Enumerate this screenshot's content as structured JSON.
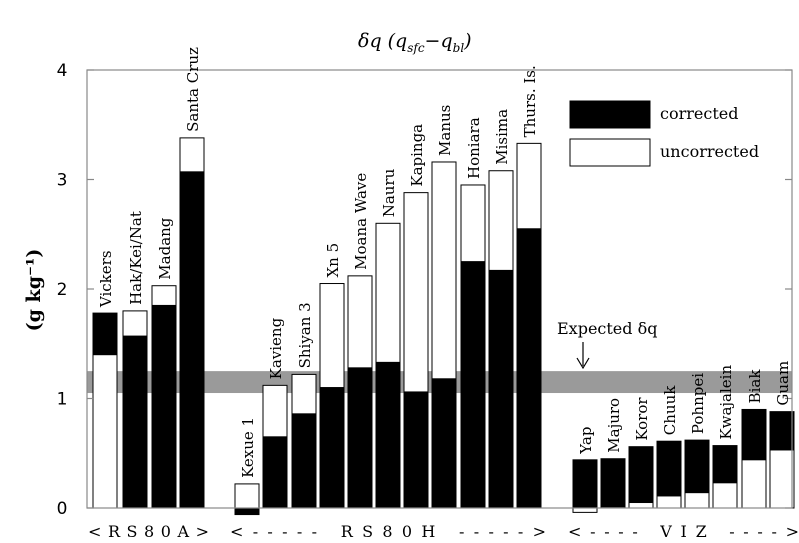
{
  "chart_data": {
    "type": "bar",
    "title": "δq (q",
    "title_sub1": "sfc",
    "title_mid": "−q",
    "title_sub2": "bl",
    "title_end": ")",
    "ylabel": "(g kg⁻¹)",
    "ylim": [
      0,
      4
    ],
    "yticks": [
      "0",
      "1",
      "2",
      "3",
      "4"
    ],
    "expected_band": [
      1.05,
      1.25
    ],
    "expected_label": "Expected δq",
    "legend": [
      {
        "label": "corrected",
        "color": "#000000"
      },
      {
        "label": "uncorrected",
        "color": "#ffffff"
      }
    ],
    "legend_position": "top-right",
    "groups": [
      {
        "label": "<RS80A>",
        "range": [
          0,
          3
        ]
      },
      {
        "label": "<----- RS80H ----->",
        "range": [
          4,
          14
        ]
      },
      {
        "label": "<---- VIZ ---->",
        "range": [
          15,
          22
        ]
      }
    ],
    "stations": [
      {
        "name": "Vickers",
        "corrected": 1.78,
        "uncorrected": 1.4
      },
      {
        "name": "Hak/Kei/Nat",
        "corrected": 1.57,
        "uncorrected": 1.8
      },
      {
        "name": "Madang",
        "corrected": 1.85,
        "uncorrected": 2.03
      },
      {
        "name": "Santa Cruz",
        "corrected": 3.07,
        "uncorrected": 3.38
      },
      {
        "name": "Kexue 1",
        "corrected": -0.06,
        "uncorrected": 0.22
      },
      {
        "name": "Kavieng",
        "corrected": 0.65,
        "uncorrected": 1.12
      },
      {
        "name": "Shiyan 3",
        "corrected": 0.86,
        "uncorrected": 1.22
      },
      {
        "name": "Xn 5",
        "corrected": 1.1,
        "uncorrected": 2.05
      },
      {
        "name": "Moana Wave",
        "corrected": 1.28,
        "uncorrected": 2.12
      },
      {
        "name": "Nauru",
        "corrected": 1.33,
        "uncorrected": 2.6
      },
      {
        "name": "Kapinga",
        "corrected": 1.06,
        "uncorrected": 2.88
      },
      {
        "name": "Manus",
        "corrected": 1.18,
        "uncorrected": 3.16
      },
      {
        "name": "Honiara",
        "corrected": 2.25,
        "uncorrected": 2.95
      },
      {
        "name": "Misima",
        "corrected": 2.17,
        "uncorrected": 3.08
      },
      {
        "name": "Thurs. Is.",
        "corrected": 2.55,
        "uncorrected": 3.33
      },
      {
        "name": "Yap",
        "corrected": 0.44,
        "uncorrected": -0.04
      },
      {
        "name": "Majuro",
        "corrected": 0.45,
        "uncorrected": 0.01
      },
      {
        "name": "Koror",
        "corrected": 0.56,
        "uncorrected": 0.05
      },
      {
        "name": "Chuuk",
        "corrected": 0.61,
        "uncorrected": 0.11
      },
      {
        "name": "Pohnpei",
        "corrected": 0.62,
        "uncorrected": 0.14
      },
      {
        "name": "Kwajalein",
        "corrected": 0.57,
        "uncorrected": 0.23
      },
      {
        "name": "Biak",
        "corrected": 0.9,
        "uncorrected": 0.44
      },
      {
        "name": "Guam",
        "corrected": 0.88,
        "uncorrected": 0.53
      }
    ]
  }
}
